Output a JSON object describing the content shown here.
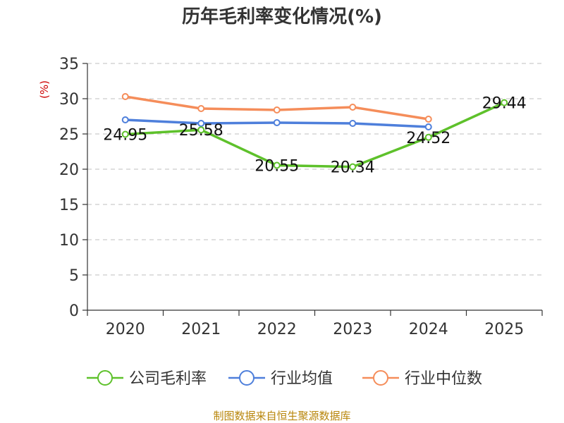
{
  "chart_data": {
    "type": "line",
    "title": "历年毛利率变化情况(%)",
    "ylabel": "(%)",
    "xlabel": "",
    "categories": [
      "2020",
      "2021",
      "2022",
      "2023",
      "2024",
      "2025"
    ],
    "ylim": [
      0,
      35
    ],
    "yticks": [
      0,
      5,
      10,
      15,
      20,
      25,
      30,
      35
    ],
    "grid": "horizontal-dashed",
    "legend_position": "bottom",
    "series": [
      {
        "name": "公司毛利率",
        "color": "#5ec12b",
        "values": [
          24.95,
          25.58,
          20.55,
          20.34,
          24.52,
          29.44
        ],
        "labels": [
          "24.95",
          "25.58",
          "20.55",
          "20.34",
          "24.52",
          "29.44"
        ]
      },
      {
        "name": "行业均值",
        "color": "#4e7fdb",
        "values": [
          27.0,
          26.5,
          26.6,
          26.5,
          26.0,
          null
        ]
      },
      {
        "name": "行业中位数",
        "color": "#f58d5a",
        "values": [
          30.3,
          28.6,
          28.4,
          28.8,
          27.1,
          null
        ]
      }
    ]
  },
  "source_note": "制图数据来自恒生聚源数据库"
}
